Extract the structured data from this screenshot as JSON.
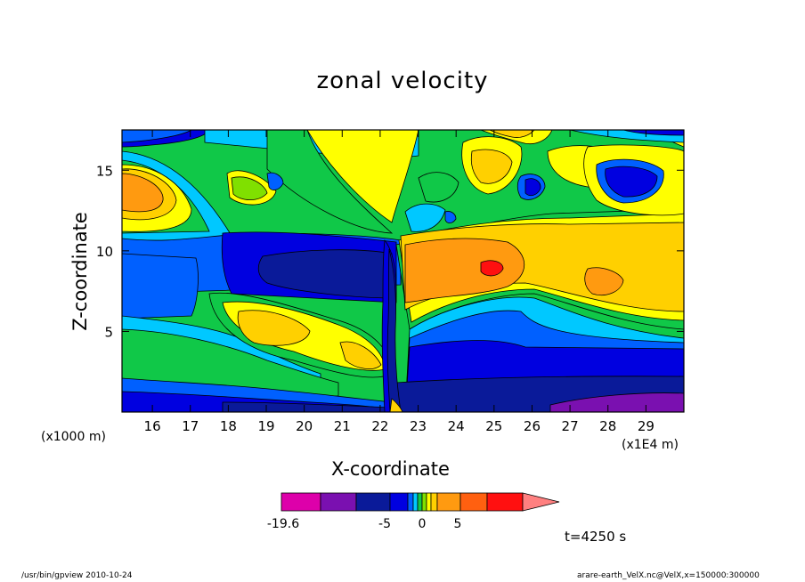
{
  "chart_data": {
    "type": "heatmap",
    "title": "zonal velocity",
    "xlabel": "X-coordinate",
    "ylabel": "Z-coordinate",
    "x_unit": "(x1E4 m)",
    "z_unit": "(x1000 m)",
    "xlim": [
      15.2,
      30.0
    ],
    "ylim": [
      0.0,
      17.5
    ],
    "x_ticks": [
      "16",
      "17",
      "18",
      "19",
      "20",
      "21",
      "22",
      "23",
      "24",
      "25",
      "26",
      "27",
      "28",
      "29"
    ],
    "y_ticks": [
      "5",
      "10",
      "15"
    ],
    "colorbar": {
      "colors": [
        "#dd00aa",
        "#7a10b0",
        "#0a1a99",
        "#0000e0",
        "#0060ff",
        "#00c8ff",
        "#10c848",
        "#80e000",
        "#ffff00",
        "#ffd000",
        "#ff9a10",
        "#ff6010",
        "#ff1010",
        "#ff8080"
      ],
      "tick_labels": [
        "-19.6",
        "-5",
        "0",
        "5"
      ]
    },
    "annotation": "t=4250 s"
  },
  "footer": {
    "left": "/usr/bin/gpview   2010-10-24",
    "right": "arare-earth_VelX.nc@VelX,x=150000:300000"
  }
}
